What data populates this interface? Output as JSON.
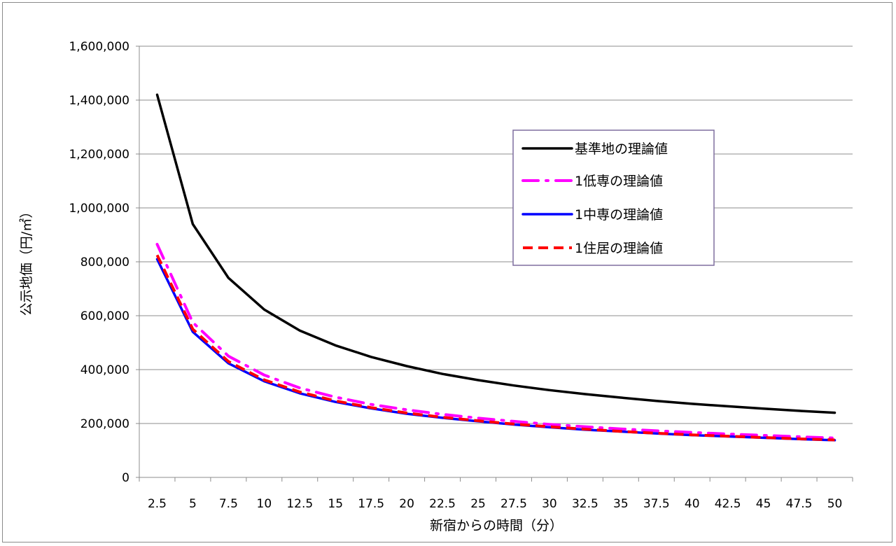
{
  "chart_data": {
    "type": "line",
    "xlabel": "新宿からの時間（分）",
    "ylabel": "公示地価（円/㎡）",
    "ylim": [
      0,
      1600000
    ],
    "yticks": [
      "0",
      "200,000",
      "400,000",
      "600,000",
      "800,000",
      "1,000,000",
      "1,200,000",
      "1,400,000",
      "1,600,000"
    ],
    "ytick_values": [
      0,
      200000,
      400000,
      600000,
      800000,
      1000000,
      1200000,
      1400000,
      1600000
    ],
    "categories": [
      "2.5",
      "5",
      "7.5",
      "10",
      "12.5",
      "15",
      "17.5",
      "20",
      "22.5",
      "25",
      "27.5",
      "30",
      "32.5",
      "35",
      "37.5",
      "40",
      "42.5",
      "45",
      "47.5",
      "50"
    ],
    "grid": true,
    "legend_position": "right",
    "series": [
      {
        "name": "基準地の理論値",
        "color": "#000000",
        "style": "solid",
        "values": [
          1420000,
          940000,
          740000,
          623000,
          545000,
          490000,
          447000,
          413000,
          384000,
          361000,
          341000,
          324000,
          309000,
          296000,
          284000,
          273000,
          264000,
          255000,
          247000,
          240000
        ]
      },
      {
        "name": "1低専の理論値",
        "color": "#ff00ff",
        "style": "dash-dot",
        "values": [
          865000,
          575000,
          450000,
          380000,
          332000,
          298000,
          271000,
          251000,
          234000,
          220000,
          208000,
          197000,
          188000,
          180000,
          173000,
          167000,
          161000,
          156000,
          151000,
          146000
        ]
      },
      {
        "name": "1中専の理論値",
        "color": "#0000ff",
        "style": "solid",
        "values": [
          810000,
          540000,
          423000,
          357000,
          312000,
          280000,
          256000,
          236000,
          221000,
          208000,
          196000,
          186000,
          177000,
          170000,
          163000,
          157000,
          152000,
          147000,
          142000,
          138000
        ]
      },
      {
        "name": "1住居の理論値",
        "color": "#ff0000",
        "style": "dash",
        "values": [
          825000,
          550000,
          430000,
          362000,
          317000,
          284000,
          259000,
          239000,
          223000,
          210000,
          198000,
          188000,
          179000,
          171000,
          164000,
          158000,
          153000,
          148000,
          143000,
          139000
        ]
      }
    ]
  }
}
